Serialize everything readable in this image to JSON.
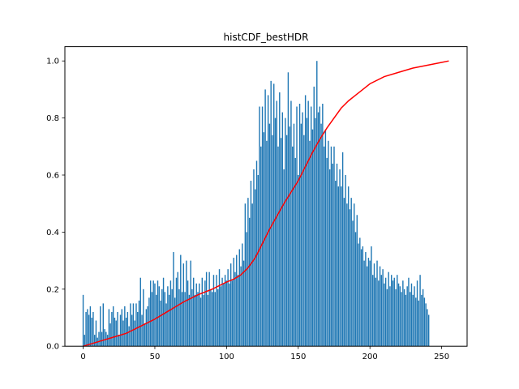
{
  "chart_data": {
    "type": "bar",
    "title": "histCDF_bestHDR",
    "xlabel": "",
    "ylabel": "",
    "xlim": [
      -12.75,
      267.75
    ],
    "ylim": [
      0,
      1.05
    ],
    "x_ticks": [
      0,
      50,
      100,
      150,
      200,
      250
    ],
    "y_ticks": [
      0.0,
      0.2,
      0.4,
      0.6,
      0.8,
      1.0
    ],
    "x_tick_labels": [
      "0",
      "50",
      "100",
      "150",
      "200",
      "250"
    ],
    "y_tick_labels": [
      "0.0",
      "0.2",
      "0.4",
      "0.6",
      "0.8",
      "1.0"
    ],
    "grid": false,
    "legend": "none",
    "bar_color": "#1f77b4",
    "line_color": "#ff0000",
    "series": [
      {
        "type": "bar",
        "x_start": 0,
        "x_step": 1,
        "values": [
          0.18,
          0.04,
          0.12,
          0.13,
          0.11,
          0.14,
          0.1,
          0.12,
          0.04,
          0.09,
          0.03,
          0.05,
          0.14,
          0.05,
          0.15,
          0.06,
          0.05,
          0.04,
          0.13,
          0.08,
          0.12,
          0.14,
          0.1,
          0.09,
          0.12,
          0.04,
          0.11,
          0.13,
          0.09,
          0.14,
          0.1,
          0.12,
          0.07,
          0.15,
          0.11,
          0.15,
          0.09,
          0.15,
          0.12,
          0.16,
          0.24,
          0.11,
          0.2,
          0.08,
          0.13,
          0.14,
          0.17,
          0.23,
          0.19,
          0.23,
          0.22,
          0.18,
          0.23,
          0.21,
          0.16,
          0.2,
          0.24,
          0.19,
          0.15,
          0.21,
          0.18,
          0.23,
          0.2,
          0.33,
          0.17,
          0.24,
          0.26,
          0.2,
          0.32,
          0.19,
          0.29,
          0.19,
          0.3,
          0.23,
          0.18,
          0.3,
          0.2,
          0.24,
          0.18,
          0.22,
          0.19,
          0.22,
          0.17,
          0.24,
          0.18,
          0.23,
          0.26,
          0.18,
          0.26,
          0.2,
          0.19,
          0.25,
          0.19,
          0.25,
          0.2,
          0.27,
          0.21,
          0.24,
          0.22,
          0.25,
          0.23,
          0.27,
          0.22,
          0.29,
          0.23,
          0.31,
          0.26,
          0.32,
          0.25,
          0.34,
          0.28,
          0.36,
          0.3,
          0.5,
          0.4,
          0.52,
          0.45,
          0.58,
          0.5,
          0.62,
          0.55,
          0.65,
          0.6,
          0.84,
          0.7,
          0.84,
          0.75,
          0.9,
          0.72,
          0.88,
          0.78,
          0.93,
          0.74,
          0.92,
          0.8,
          0.86,
          0.7,
          0.89,
          0.73,
          0.82,
          0.62,
          0.8,
          0.74,
          0.96,
          0.77,
          0.86,
          0.7,
          0.78,
          0.66,
          0.84,
          0.6,
          0.85,
          0.78,
          0.82,
          0.74,
          0.88,
          0.8,
          0.86,
          0.72,
          0.84,
          0.76,
          0.91,
          0.8,
          1.0,
          0.82,
          0.84,
          0.78,
          0.85,
          0.7,
          0.76,
          0.66,
          0.72,
          0.62,
          0.7,
          0.64,
          0.7,
          0.58,
          0.64,
          0.56,
          0.62,
          0.56,
          0.68,
          0.52,
          0.6,
          0.5,
          0.56,
          0.48,
          0.52,
          0.44,
          0.5,
          0.4,
          0.46,
          0.36,
          0.38,
          0.34,
          0.35,
          0.3,
          0.33,
          0.28,
          0.31,
          0.3,
          0.35,
          0.25,
          0.29,
          0.24,
          0.3,
          0.23,
          0.28,
          0.25,
          0.27,
          0.22,
          0.24,
          0.2,
          0.26,
          0.21,
          0.25,
          0.23,
          0.24,
          0.2,
          0.25,
          0.22,
          0.21,
          0.19,
          0.23,
          0.2,
          0.18,
          0.21,
          0.24,
          0.19,
          0.22,
          0.18,
          0.21,
          0.17,
          0.23,
          0.16,
          0.25,
          0.18,
          0.2,
          0.17,
          0.15,
          0.13,
          0.11
        ]
      },
      {
        "type": "line",
        "x": [
          0,
          10,
          20,
          30,
          40,
          50,
          60,
          70,
          80,
          90,
          100,
          105,
          110,
          115,
          120,
          125,
          130,
          135,
          140,
          145,
          150,
          155,
          160,
          165,
          170,
          175,
          180,
          185,
          190,
          195,
          200,
          210,
          220,
          230,
          240,
          250,
          255
        ],
        "values": [
          0.0,
          0.015,
          0.03,
          0.045,
          0.07,
          0.095,
          0.125,
          0.155,
          0.18,
          0.2,
          0.225,
          0.235,
          0.25,
          0.275,
          0.31,
          0.36,
          0.41,
          0.455,
          0.5,
          0.54,
          0.58,
          0.63,
          0.68,
          0.725,
          0.765,
          0.8,
          0.835,
          0.86,
          0.88,
          0.9,
          0.92,
          0.945,
          0.96,
          0.975,
          0.985,
          0.995,
          1.0
        ]
      }
    ]
  }
}
